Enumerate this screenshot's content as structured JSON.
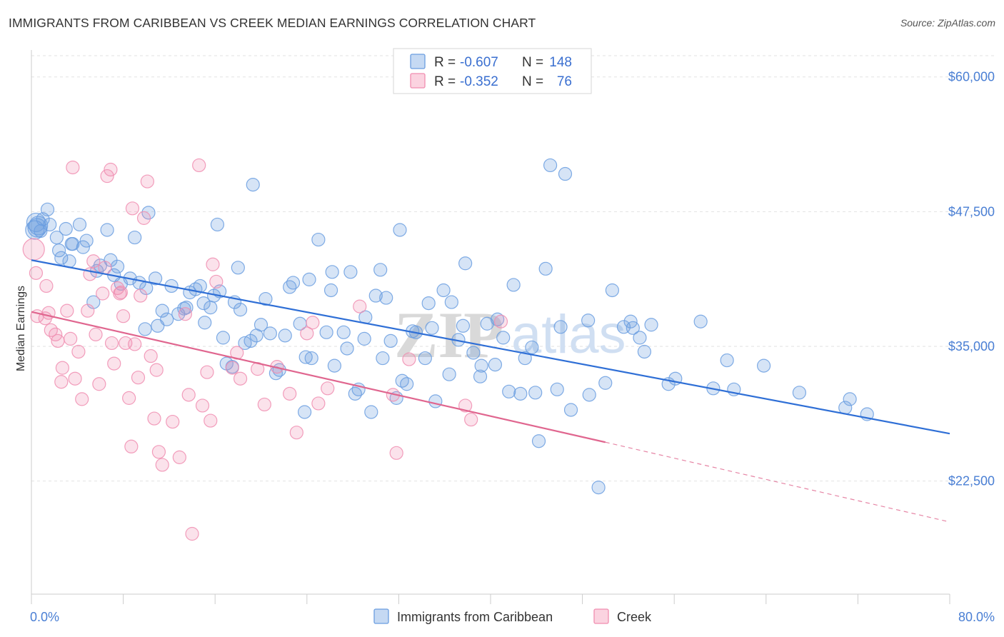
{
  "title": "IMMIGRANTS FROM CARIBBEAN VS CREEK MEDIAN EARNINGS CORRELATION CHART",
  "source": "Source: ZipAtlas.com",
  "watermark": {
    "zip": "ZIP",
    "atlas": "atlas"
  },
  "legend": [
    {
      "r_label": "R =",
      "r_value": "-0.607",
      "n_label": "N =",
      "n_value": "148"
    },
    {
      "r_label": "R =",
      "r_value": "-0.352",
      "n_label": "N =",
      "n_value": "76"
    }
  ],
  "chart_data": {
    "type": "scatter",
    "title": "IMMIGRANTS FROM CARIBBEAN VS CREEK MEDIAN EARNINGS CORRELATION CHART",
    "xlabel": "",
    "ylabel": "Median Earnings",
    "xlim": [
      0,
      80
    ],
    "ylim": [
      12000,
      62500
    ],
    "x_tick_labels": [
      "0.0%",
      "80.0%"
    ],
    "y_ticks": [
      22500,
      35000,
      47500,
      60000
    ],
    "y_tick_labels": [
      "$22,500",
      "$35,000",
      "$47,500",
      "$60,000"
    ],
    "grid": true,
    "legend_position": "top-center",
    "colors": {
      "caribbean": "#6a9de0",
      "creek": "#f08db0",
      "caribbean_line": "#2f6fd6",
      "creek_line": "#e0668f"
    },
    "series": [
      {
        "name": "Immigrants from Caribbean",
        "r": -0.607,
        "n": 148,
        "trend": {
          "x0": 0,
          "y0": 43000,
          "x1": 80,
          "y1": 26900
        },
        "points": [
          [
            0.3,
            45800
          ],
          [
            0.4,
            46500
          ],
          [
            0.5,
            46000
          ],
          [
            0.6,
            46200
          ],
          [
            0.8,
            45700
          ],
          [
            1.0,
            46800
          ],
          [
            1.4,
            47700
          ],
          [
            1.6,
            46300
          ],
          [
            2.2,
            45100
          ],
          [
            2.4,
            43900
          ],
          [
            2.6,
            43200
          ],
          [
            3.0,
            45900
          ],
          [
            3.3,
            42900
          ],
          [
            3.5,
            44500
          ],
          [
            3.6,
            44500
          ],
          [
            4.2,
            46300
          ],
          [
            4.5,
            44200
          ],
          [
            4.8,
            44800
          ],
          [
            5.4,
            39100
          ],
          [
            5.7,
            42000
          ],
          [
            6.0,
            42500
          ],
          [
            6.6,
            45800
          ],
          [
            6.9,
            43000
          ],
          [
            7.2,
            41600
          ],
          [
            7.5,
            42400
          ],
          [
            7.8,
            40800
          ],
          [
            8.6,
            41300
          ],
          [
            9.0,
            45100
          ],
          [
            9.4,
            40900
          ],
          [
            9.9,
            36600
          ],
          [
            10.2,
            47400
          ],
          [
            10.0,
            40400
          ],
          [
            10.8,
            41300
          ],
          [
            11.0,
            36900
          ],
          [
            11.4,
            38300
          ],
          [
            11.8,
            37500
          ],
          [
            12.2,
            40600
          ],
          [
            12.8,
            38000
          ],
          [
            13.3,
            38500
          ],
          [
            13.5,
            38600
          ],
          [
            13.8,
            40000
          ],
          [
            14.3,
            40300
          ],
          [
            14.7,
            40600
          ],
          [
            15.0,
            39000
          ],
          [
            15.1,
            37200
          ],
          [
            15.6,
            38600
          ],
          [
            15.9,
            39700
          ],
          [
            16.2,
            46300
          ],
          [
            16.4,
            40100
          ],
          [
            16.7,
            35800
          ],
          [
            17.0,
            33400
          ],
          [
            17.5,
            33100
          ],
          [
            17.7,
            39100
          ],
          [
            18.0,
            42300
          ],
          [
            18.2,
            38400
          ],
          [
            18.6,
            35300
          ],
          [
            19.1,
            35500
          ],
          [
            19.3,
            50000
          ],
          [
            19.6,
            36000
          ],
          [
            20.0,
            37000
          ],
          [
            20.4,
            39400
          ],
          [
            20.8,
            36200
          ],
          [
            21.3,
            32500
          ],
          [
            21.6,
            32800
          ],
          [
            22.1,
            36000
          ],
          [
            22.5,
            40500
          ],
          [
            22.8,
            40900
          ],
          [
            23.4,
            37100
          ],
          [
            23.8,
            28900
          ],
          [
            23.9,
            34000
          ],
          [
            24.2,
            41200
          ],
          [
            24.4,
            33900
          ],
          [
            25.0,
            44900
          ],
          [
            25.7,
            36300
          ],
          [
            26.1,
            40200
          ],
          [
            26.4,
            33200
          ],
          [
            26.2,
            41900
          ],
          [
            27.2,
            36300
          ],
          [
            27.5,
            34800
          ],
          [
            27.8,
            41900
          ],
          [
            28.2,
            30600
          ],
          [
            28.5,
            31000
          ],
          [
            29.0,
            35700
          ],
          [
            29.1,
            37700
          ],
          [
            29.6,
            28900
          ],
          [
            30.0,
            39700
          ],
          [
            30.4,
            42100
          ],
          [
            30.6,
            33900
          ],
          [
            30.9,
            39500
          ],
          [
            31.3,
            35500
          ],
          [
            31.8,
            30200
          ],
          [
            32.1,
            45800
          ],
          [
            32.3,
            31800
          ],
          [
            32.7,
            31500
          ],
          [
            33.2,
            36400
          ],
          [
            33.5,
            36300
          ],
          [
            34.3,
            33900
          ],
          [
            34.6,
            39000
          ],
          [
            34.9,
            36700
          ],
          [
            35.2,
            29900
          ],
          [
            35.9,
            40200
          ],
          [
            36.4,
            32400
          ],
          [
            36.6,
            39100
          ],
          [
            37.2,
            35600
          ],
          [
            37.6,
            36900
          ],
          [
            37.8,
            42700
          ],
          [
            38.5,
            34400
          ],
          [
            39.1,
            32200
          ],
          [
            39.2,
            33200
          ],
          [
            39.7,
            37100
          ],
          [
            40.4,
            33300
          ],
          [
            40.6,
            37500
          ],
          [
            41.1,
            35800
          ],
          [
            41.6,
            30800
          ],
          [
            42.0,
            40700
          ],
          [
            42.6,
            30600
          ],
          [
            43.0,
            33900
          ],
          [
            43.6,
            34900
          ],
          [
            43.9,
            30700
          ],
          [
            44.2,
            26200
          ],
          [
            44.8,
            42200
          ],
          [
            45.2,
            51800
          ],
          [
            45.8,
            31000
          ],
          [
            46.1,
            36800
          ],
          [
            46.5,
            51000
          ],
          [
            47.0,
            29100
          ],
          [
            48.5,
            37400
          ],
          [
            48.6,
            30500
          ],
          [
            49.4,
            21900
          ],
          [
            50.0,
            31600
          ],
          [
            50.6,
            40200
          ],
          [
            51.6,
            36800
          ],
          [
            52.2,
            37300
          ],
          [
            52.4,
            36700
          ],
          [
            53.0,
            35800
          ],
          [
            53.4,
            34500
          ],
          [
            54.0,
            37000
          ],
          [
            55.5,
            31500
          ],
          [
            56.1,
            32000
          ],
          [
            58.3,
            37300
          ],
          [
            59.4,
            31100
          ],
          [
            60.6,
            33700
          ],
          [
            61.2,
            31000
          ],
          [
            63.8,
            33200
          ],
          [
            66.9,
            30700
          ],
          [
            70.9,
            29300
          ],
          [
            71.3,
            30100
          ],
          [
            72.8,
            28700
          ]
        ]
      },
      {
        "name": "Creek",
        "r": -0.352,
        "n": 76,
        "trend": {
          "x0": 0,
          "y0": 38200,
          "x1": 50,
          "y1": 26100,
          "x_dash_end": 80,
          "y_dash_end": 18700
        },
        "points": [
          [
            0.2,
            44000
          ],
          [
            0.4,
            41800
          ],
          [
            0.5,
            37800
          ],
          [
            1.2,
            37600
          ],
          [
            1.3,
            40600
          ],
          [
            1.5,
            38100
          ],
          [
            1.7,
            36500
          ],
          [
            2.1,
            36100
          ],
          [
            2.3,
            35500
          ],
          [
            2.6,
            31700
          ],
          [
            2.7,
            33000
          ],
          [
            3.1,
            38300
          ],
          [
            3.4,
            35700
          ],
          [
            3.6,
            51600
          ],
          [
            3.8,
            32000
          ],
          [
            4.1,
            34500
          ],
          [
            4.4,
            30100
          ],
          [
            4.9,
            38300
          ],
          [
            5.1,
            41700
          ],
          [
            5.4,
            42900
          ],
          [
            5.6,
            36100
          ],
          [
            5.9,
            31500
          ],
          [
            6.2,
            39900
          ],
          [
            6.4,
            42300
          ],
          [
            6.6,
            50800
          ],
          [
            6.9,
            51400
          ],
          [
            7.0,
            35300
          ],
          [
            7.2,
            33400
          ],
          [
            7.5,
            40400
          ],
          [
            7.7,
            39900
          ],
          [
            7.8,
            40000
          ],
          [
            8.0,
            37800
          ],
          [
            8.2,
            35300
          ],
          [
            8.5,
            30200
          ],
          [
            8.7,
            25700
          ],
          [
            8.8,
            47800
          ],
          [
            9.0,
            35200
          ],
          [
            9.3,
            32100
          ],
          [
            9.5,
            39700
          ],
          [
            9.8,
            46900
          ],
          [
            10.1,
            50300
          ],
          [
            10.4,
            34100
          ],
          [
            10.7,
            28300
          ],
          [
            10.9,
            32800
          ],
          [
            11.1,
            25200
          ],
          [
            11.4,
            24000
          ],
          [
            12.3,
            28000
          ],
          [
            12.9,
            24700
          ],
          [
            13.4,
            38000
          ],
          [
            13.7,
            30500
          ],
          [
            14.0,
            17600
          ],
          [
            14.6,
            51800
          ],
          [
            14.9,
            29500
          ],
          [
            15.3,
            32600
          ],
          [
            15.6,
            28100
          ],
          [
            15.8,
            42600
          ],
          [
            16.1,
            41000
          ],
          [
            17.5,
            33000
          ],
          [
            17.9,
            34400
          ],
          [
            18.2,
            32000
          ],
          [
            19.7,
            32900
          ],
          [
            20.3,
            29600
          ],
          [
            21.4,
            33100
          ],
          [
            22.5,
            30600
          ],
          [
            23.1,
            27000
          ],
          [
            24.0,
            36200
          ],
          [
            24.5,
            37200
          ],
          [
            25.0,
            29700
          ],
          [
            25.8,
            31100
          ],
          [
            28.6,
            38700
          ],
          [
            31.5,
            30500
          ],
          [
            31.8,
            25100
          ],
          [
            32.9,
            33800
          ],
          [
            37.8,
            29500
          ],
          [
            38.3,
            28200
          ],
          [
            40.9,
            37300
          ]
        ]
      }
    ]
  },
  "bottom_legend": [
    {
      "label": "Immigrants from Caribbean"
    },
    {
      "label": "Creek"
    }
  ]
}
